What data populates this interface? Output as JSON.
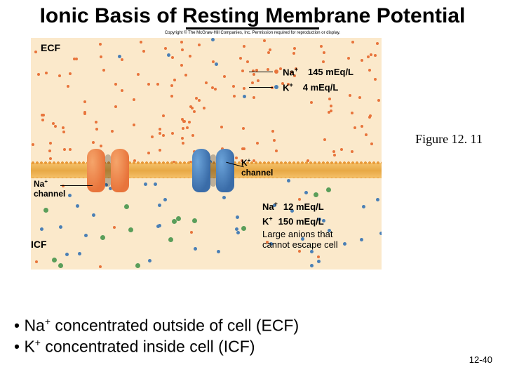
{
  "title": "Ionic Basis of Resting Membrane Potential",
  "copyright": "Copyright © The McGraw-Hill Companies, Inc. Permission required for reproduction or display.",
  "regions": {
    "ecf": "ECF",
    "icf": "ICF"
  },
  "channels": {
    "na": {
      "label_html": "Na<sup>+</sup> channel",
      "color": "#e8743b"
    },
    "k": {
      "label_html": "K<sup>+</sup> channel",
      "color": "#3a6ca8"
    }
  },
  "legend_ecf": [
    {
      "ion_html": "Na<sup>+</sup>",
      "value": "145 mEq/L",
      "dot": "na"
    },
    {
      "ion_html": "K<sup>+</sup>",
      "value": "4 mEq/L",
      "dot": "k"
    }
  ],
  "legend_icf": [
    {
      "ion_html": "Na<sup>+</sup>",
      "value": "12 mEq/L"
    },
    {
      "ion_html": "K<sup>+</sup>",
      "value": "150 mEq/L"
    },
    {
      "text": "Large anions that cannot escape cell"
    }
  ],
  "figure_caption": "Figure 12. 11",
  "bullets": [
    "Na<sup>+</sup> concentrated outside of cell (ECF)",
    "K<sup>+</sup> concentrated inside cell (ICF)"
  ],
  "slide_number": "12-40",
  "colors": {
    "bg_compartment": "#fbe9cb",
    "membrane": "#e8a845",
    "na_dot": "#e8743b",
    "k_dot": "#4a7fb5",
    "anion_dot": "#5a9e5a"
  },
  "ecf_dots": {
    "na_count": 160,
    "k_count": 6
  },
  "icf_dots": {
    "na_count": 10,
    "k_count": 40,
    "anion_count": 14
  }
}
